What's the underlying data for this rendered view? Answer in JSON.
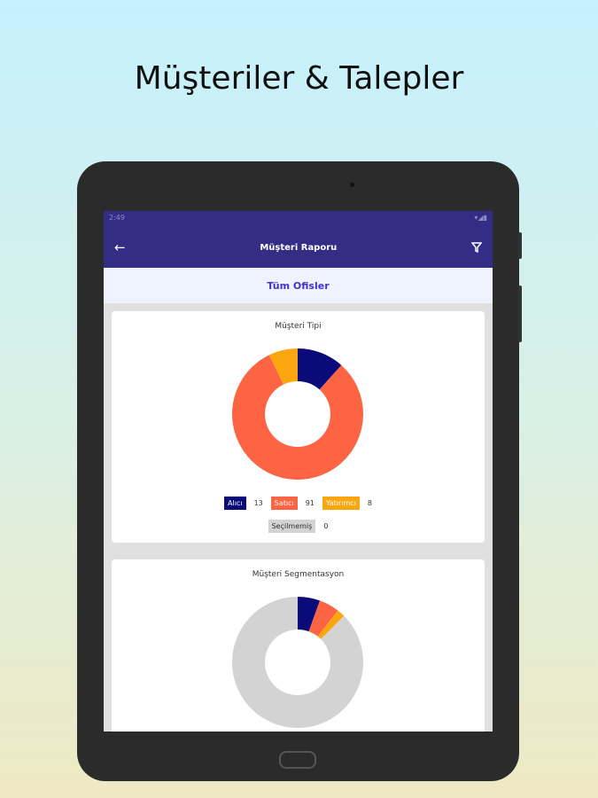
{
  "headline": "Müşteriler & Talepler",
  "status_bar": {
    "time": "2:49",
    "icons": "▾◢▮"
  },
  "app_bar": {
    "title": "Müşteri Raporu",
    "back_icon": "arrow-left",
    "filter_icon": "filter"
  },
  "office_selector": {
    "label": "Tüm Ofisler"
  },
  "chart_data": [
    {
      "type": "pie",
      "title": "Müşteri Tipi",
      "donut": true,
      "categories": [
        "Alıcı",
        "Satıcı",
        "Yatırımcı",
        "Seçilmemiş"
      ],
      "values": [
        13,
        91,
        8,
        0
      ],
      "colors": [
        "#0a0a7a",
        "#fd6443",
        "#fca60f",
        "#d3d3d3"
      ]
    },
    {
      "type": "pie",
      "title": "Müşteri Segmentasyon",
      "donut": true,
      "values_percent": [
        5.5,
        5,
        2,
        87.5
      ],
      "colors": [
        "#0a0a7a",
        "#fd6443",
        "#fca60f",
        "#d3d3d3"
      ]
    }
  ]
}
